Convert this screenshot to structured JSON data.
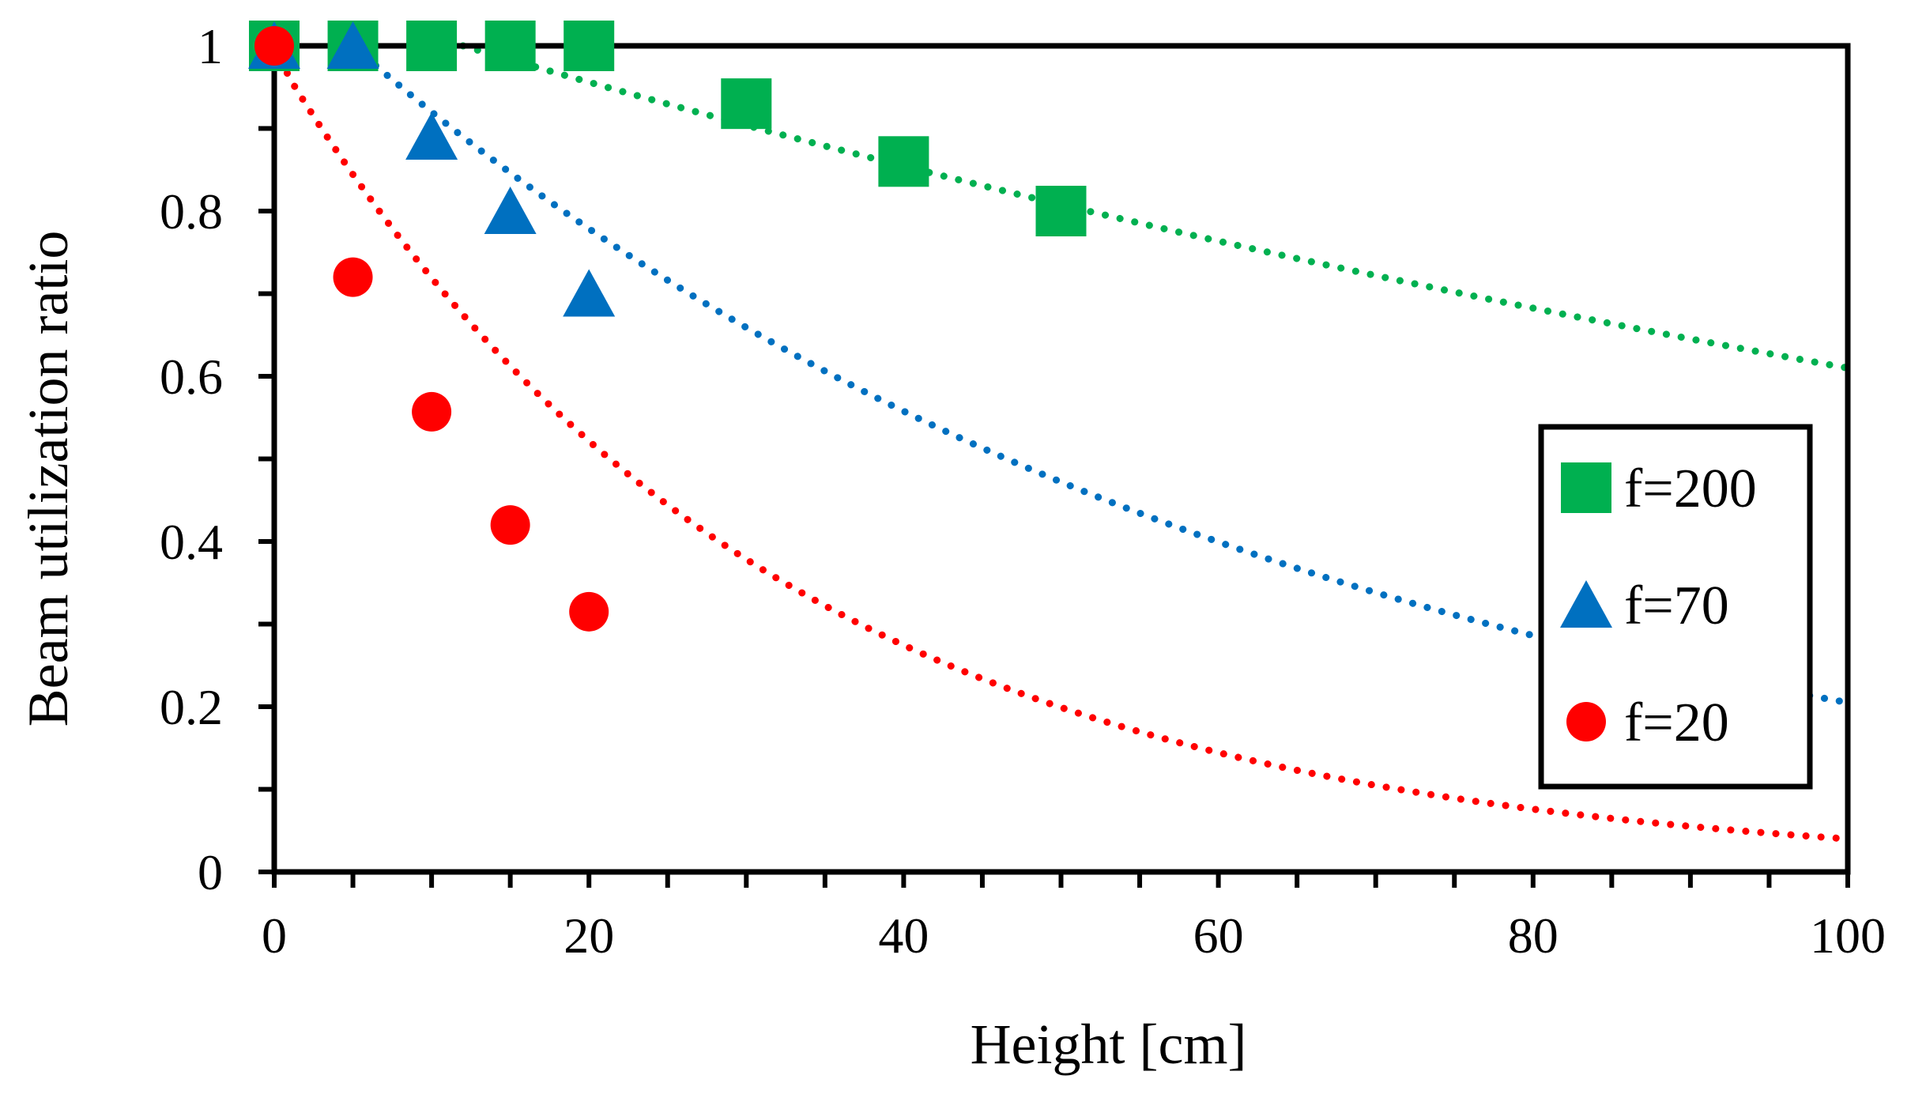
{
  "chart_data": {
    "type": "scatter",
    "xlabel": "Height [cm]",
    "ylabel": "Beam utilization ratio",
    "xlim": [
      0,
      100
    ],
    "ylim": [
      0,
      1
    ],
    "x_ticks": [
      0,
      20,
      40,
      60,
      80,
      100
    ],
    "x_tick_labels": [
      "0",
      "20",
      "40",
      "60",
      "80",
      "100"
    ],
    "x_minor_step": 5,
    "y_ticks": [
      0,
      0.2,
      0.4,
      0.6,
      0.8,
      1
    ],
    "y_tick_labels": [
      "0",
      "0.2",
      "0.4",
      "0.6",
      "0.8",
      "1"
    ],
    "y_minor_step": 0.1,
    "grid": false,
    "legend_position": "right",
    "series": [
      {
        "name": "f=200",
        "marker": "square",
        "color": "#00b050",
        "x": [
          0,
          5,
          10,
          15,
          20,
          30,
          40,
          50
        ],
        "y": [
          1.0,
          1.0,
          1.0,
          1.0,
          1.0,
          0.93,
          0.86,
          0.8
        ],
        "trendline": {
          "style": "dotted",
          "model": "exponential",
          "points": [
            [
              0,
              1.0
            ],
            [
              12,
              1.0
            ],
            [
              100,
              0.61
            ]
          ]
        }
      },
      {
        "name": "f=70",
        "marker": "triangle",
        "color": "#0070c0",
        "x": [
          0,
          5,
          10,
          15,
          20
        ],
        "y": [
          1.0,
          1.0,
          0.89,
          0.8,
          0.7
        ],
        "trendline": {
          "style": "dotted",
          "model": "exponential",
          "points": [
            [
              0,
              1.0
            ],
            [
              5,
              1.0
            ],
            [
              100,
              0.205
            ]
          ]
        }
      },
      {
        "name": "f=20",
        "marker": "circle",
        "color": "#ff0000",
        "x": [
          0,
          5,
          10,
          15,
          20
        ],
        "y": [
          1.0,
          0.72,
          0.557,
          0.42,
          0.315
        ],
        "trendline": {
          "style": "dotted",
          "model": "exponential",
          "points": [
            [
              0,
              1.0
            ],
            [
              1,
              0.96
            ],
            [
              100,
              0.04
            ]
          ]
        }
      }
    ]
  }
}
